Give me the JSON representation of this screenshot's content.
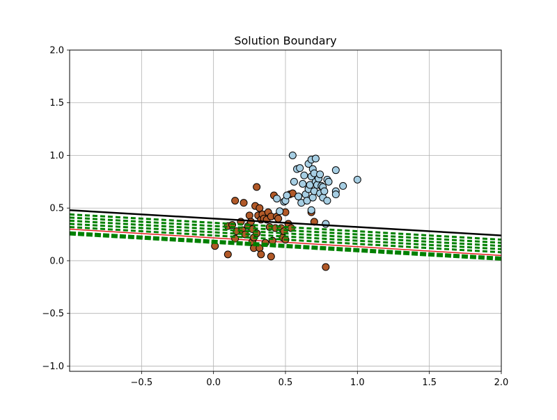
{
  "chart_data": {
    "type": "scatter",
    "title": "Solution Boundary",
    "xlabel": "",
    "ylabel": "",
    "xlim": [
      -1.0,
      2.0
    ],
    "ylim": [
      -1.05,
      2.0
    ],
    "xticks": [
      -0.5,
      0.0,
      0.5,
      1.0,
      1.5,
      2.0
    ],
    "xtick_labels": [
      "−0.5",
      "0.0",
      "0.5",
      "1.0",
      "1.5",
      "2.0"
    ],
    "yticks": [
      -1.0,
      -0.5,
      0.0,
      0.5,
      1.0,
      1.5,
      2.0
    ],
    "ytick_labels": [
      "−1.0",
      "−0.5",
      "0.0",
      "0.5",
      "1.0",
      "1.5",
      "2.0"
    ],
    "grid": true,
    "colors": {
      "class_0": "#b15928",
      "class_1": "#a6cee3",
      "boundary_final": "#000000",
      "boundary_initial": "#e31a1c",
      "boundary_iterations": "#008000"
    },
    "series": [
      {
        "kind": "points",
        "class": 0,
        "color": "#b15928",
        "points": [
          [
            0.01,
            0.14
          ],
          [
            0.1,
            0.06
          ],
          [
            0.1,
            0.33
          ],
          [
            0.13,
            0.34
          ],
          [
            0.15,
            0.21
          ],
          [
            0.15,
            0.57
          ],
          [
            0.16,
            0.28
          ],
          [
            0.19,
            0.37
          ],
          [
            0.2,
            0.29
          ],
          [
            0.21,
            0.55
          ],
          [
            0.22,
            0.25
          ],
          [
            0.24,
            0.33
          ],
          [
            0.25,
            0.43
          ],
          [
            0.26,
            0.37
          ],
          [
            0.27,
            0.3
          ],
          [
            0.27,
            0.18
          ],
          [
            0.28,
            0.22
          ],
          [
            0.28,
            0.12
          ],
          [
            0.29,
            0.52
          ],
          [
            0.3,
            0.7
          ],
          [
            0.3,
            0.26
          ],
          [
            0.31,
            0.43
          ],
          [
            0.32,
            0.5
          ],
          [
            0.32,
            0.12
          ],
          [
            0.33,
            0.06
          ],
          [
            0.33,
            0.39
          ],
          [
            0.34,
            0.44
          ],
          [
            0.35,
            0.4
          ],
          [
            0.36,
            0.17
          ],
          [
            0.37,
            0.39
          ],
          [
            0.38,
            0.46
          ],
          [
            0.39,
            0.32
          ],
          [
            0.4,
            0.04
          ],
          [
            0.4,
            0.42
          ],
          [
            0.41,
            0.19
          ],
          [
            0.42,
            0.62
          ],
          [
            0.43,
            0.31
          ],
          [
            0.44,
            0.42
          ],
          [
            0.45,
            0.4
          ],
          [
            0.47,
            0.31
          ],
          [
            0.48,
            0.22
          ],
          [
            0.49,
            0.28
          ],
          [
            0.5,
            0.46
          ],
          [
            0.5,
            0.2
          ],
          [
            0.52,
            0.35
          ],
          [
            0.53,
            0.63
          ],
          [
            0.54,
            0.31
          ],
          [
            0.55,
            0.64
          ],
          [
            0.68,
            0.46
          ],
          [
            0.7,
            0.37
          ],
          [
            0.78,
            -0.06
          ]
        ]
      },
      {
        "kind": "points",
        "class": 1,
        "color": "#a6cee3",
        "points": [
          [
            0.44,
            0.59
          ],
          [
            0.46,
            0.47
          ],
          [
            0.49,
            0.56
          ],
          [
            0.5,
            0.57
          ],
          [
            0.51,
            0.62
          ],
          [
            0.55,
            1.0
          ],
          [
            0.56,
            0.75
          ],
          [
            0.58,
            0.87
          ],
          [
            0.59,
            0.61
          ],
          [
            0.6,
            0.88
          ],
          [
            0.61,
            0.55
          ],
          [
            0.62,
            0.73
          ],
          [
            0.63,
            0.81
          ],
          [
            0.64,
            0.63
          ],
          [
            0.65,
            0.57
          ],
          [
            0.66,
            0.92
          ],
          [
            0.66,
            0.68
          ],
          [
            0.67,
            0.72
          ],
          [
            0.68,
            0.8
          ],
          [
            0.68,
            0.96
          ],
          [
            0.68,
            0.48
          ],
          [
            0.69,
            0.87
          ],
          [
            0.69,
            0.6
          ],
          [
            0.7,
            0.66
          ],
          [
            0.7,
            0.83
          ],
          [
            0.71,
            0.75
          ],
          [
            0.71,
            0.97
          ],
          [
            0.72,
            0.72
          ],
          [
            0.73,
            0.78
          ],
          [
            0.74,
            0.82
          ],
          [
            0.74,
            0.64
          ],
          [
            0.75,
            0.71
          ],
          [
            0.76,
            0.7
          ],
          [
            0.76,
            0.6
          ],
          [
            0.77,
            0.66
          ],
          [
            0.78,
            0.35
          ],
          [
            0.79,
            0.57
          ],
          [
            0.79,
            0.77
          ],
          [
            0.8,
            0.75
          ],
          [
            0.85,
            0.86
          ],
          [
            0.85,
            0.66
          ],
          [
            0.85,
            0.63
          ],
          [
            0.9,
            0.71
          ],
          [
            1.0,
            0.77
          ]
        ]
      },
      {
        "kind": "line",
        "role": "final-boundary",
        "color": "#000000",
        "style": "solid",
        "x": [
          -1.0,
          2.0
        ],
        "y": [
          0.48,
          0.24
        ]
      },
      {
        "kind": "line",
        "role": "initial-boundary",
        "color": "#e31a1c",
        "style": "solid",
        "x": [
          -1.0,
          2.0
        ],
        "y": [
          0.3,
          0.05
        ]
      },
      {
        "kind": "line",
        "role": "iteration",
        "color": "#008000",
        "style": "dashed",
        "x": [
          -1.0,
          2.0
        ],
        "y": [
          0.44,
          0.2
        ]
      },
      {
        "kind": "line",
        "role": "iteration",
        "color": "#008000",
        "style": "dashed",
        "x": [
          -1.0,
          2.0
        ],
        "y": [
          0.41,
          0.17
        ]
      },
      {
        "kind": "line",
        "role": "iteration",
        "color": "#008000",
        "style": "dashed",
        "x": [
          -1.0,
          2.0
        ],
        "y": [
          0.38,
          0.14
        ]
      },
      {
        "kind": "line",
        "role": "iteration",
        "color": "#008000",
        "style": "dashed",
        "x": [
          -1.0,
          2.0
        ],
        "y": [
          0.35,
          0.11
        ]
      },
      {
        "kind": "line",
        "role": "iteration",
        "color": "#008000",
        "style": "dashed",
        "x": [
          -1.0,
          2.0
        ],
        "y": [
          0.32,
          0.08
        ]
      },
      {
        "kind": "line",
        "role": "iteration",
        "color": "#008000",
        "style": "dashed",
        "x": [
          -1.0,
          2.0
        ],
        "y": [
          0.26,
          0.02
        ]
      }
    ]
  }
}
